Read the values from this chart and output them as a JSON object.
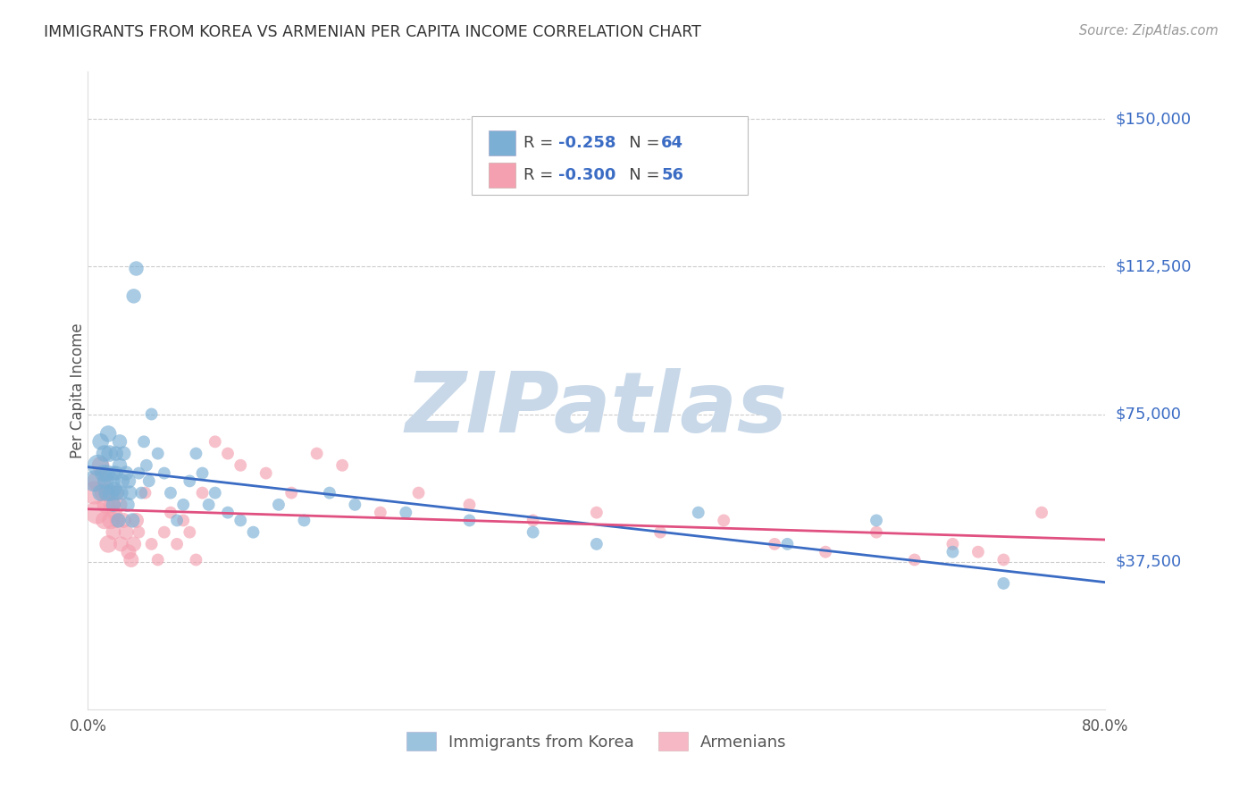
{
  "title": "IMMIGRANTS FROM KOREA VS ARMENIAN PER CAPITA INCOME CORRELATION CHART",
  "source": "Source: ZipAtlas.com",
  "ylabel": "Per Capita Income",
  "yticks_vals": [
    37500,
    75000,
    112500,
    150000
  ],
  "ytick_labels": [
    "$37,500",
    "$75,000",
    "$112,500",
    "$150,000"
  ],
  "ylim": [
    0,
    162000
  ],
  "xlim": [
    0.0,
    0.8
  ],
  "korea_color": "#7BAFD4",
  "armenian_color": "#F4A0B0",
  "korea_line_color": "#3B6CC4",
  "armenian_line_color": "#E05080",
  "background_color": "#FFFFFF",
  "watermark": "ZIPatlas",
  "watermark_color": "#C8D8E8",
  "legend_label_color": "#3B6CC4",
  "legend_r_korea": "-0.258",
  "legend_n_korea": "64",
  "legend_r_armenian": "-0.300",
  "legend_n_armenian": "56",
  "korea_x": [
    0.005,
    0.008,
    0.01,
    0.01,
    0.012,
    0.013,
    0.014,
    0.015,
    0.015,
    0.016,
    0.017,
    0.018,
    0.019,
    0.02,
    0.02,
    0.021,
    0.022,
    0.022,
    0.023,
    0.024,
    0.025,
    0.025,
    0.026,
    0.027,
    0.028,
    0.03,
    0.031,
    0.032,
    0.033,
    0.035,
    0.036,
    0.038,
    0.04,
    0.042,
    0.044,
    0.046,
    0.048,
    0.05,
    0.055,
    0.06,
    0.065,
    0.07,
    0.075,
    0.08,
    0.085,
    0.09,
    0.095,
    0.1,
    0.11,
    0.12,
    0.13,
    0.15,
    0.17,
    0.19,
    0.21,
    0.25,
    0.3,
    0.35,
    0.4,
    0.48,
    0.55,
    0.62,
    0.68,
    0.72
  ],
  "korea_y": [
    58000,
    62000,
    55000,
    68000,
    60000,
    65000,
    58000,
    55000,
    60000,
    70000,
    65000,
    55000,
    58000,
    60000,
    52000,
    56000,
    60000,
    65000,
    55000,
    48000,
    62000,
    68000,
    55000,
    58000,
    65000,
    60000,
    52000,
    58000,
    55000,
    48000,
    105000,
    112000,
    60000,
    55000,
    68000,
    62000,
    58000,
    75000,
    65000,
    60000,
    55000,
    48000,
    52000,
    58000,
    65000,
    60000,
    52000,
    55000,
    50000,
    48000,
    45000,
    52000,
    48000,
    55000,
    52000,
    50000,
    48000,
    45000,
    42000,
    50000,
    42000,
    48000,
    40000,
    32000
  ],
  "armenian_x": [
    0.005,
    0.007,
    0.009,
    0.01,
    0.012,
    0.013,
    0.014,
    0.015,
    0.016,
    0.018,
    0.019,
    0.02,
    0.021,
    0.022,
    0.023,
    0.025,
    0.026,
    0.028,
    0.03,
    0.032,
    0.034,
    0.036,
    0.038,
    0.04,
    0.045,
    0.05,
    0.055,
    0.06,
    0.065,
    0.07,
    0.075,
    0.08,
    0.085,
    0.09,
    0.1,
    0.11,
    0.12,
    0.14,
    0.16,
    0.18,
    0.2,
    0.23,
    0.26,
    0.3,
    0.35,
    0.4,
    0.45,
    0.5,
    0.54,
    0.58,
    0.62,
    0.65,
    0.68,
    0.7,
    0.72,
    0.75
  ],
  "armenian_y": [
    55000,
    50000,
    58000,
    62000,
    55000,
    48000,
    52000,
    55000,
    42000,
    48000,
    52000,
    45000,
    50000,
    55000,
    48000,
    52000,
    42000,
    48000,
    45000,
    40000,
    38000,
    42000,
    48000,
    45000,
    55000,
    42000,
    38000,
    45000,
    50000,
    42000,
    48000,
    45000,
    38000,
    55000,
    68000,
    65000,
    62000,
    60000,
    55000,
    65000,
    62000,
    50000,
    55000,
    52000,
    48000,
    50000,
    45000,
    48000,
    42000,
    40000,
    45000,
    38000,
    42000,
    40000,
    38000,
    50000
  ],
  "korea_size_base": 120,
  "armenian_size_base": 120
}
